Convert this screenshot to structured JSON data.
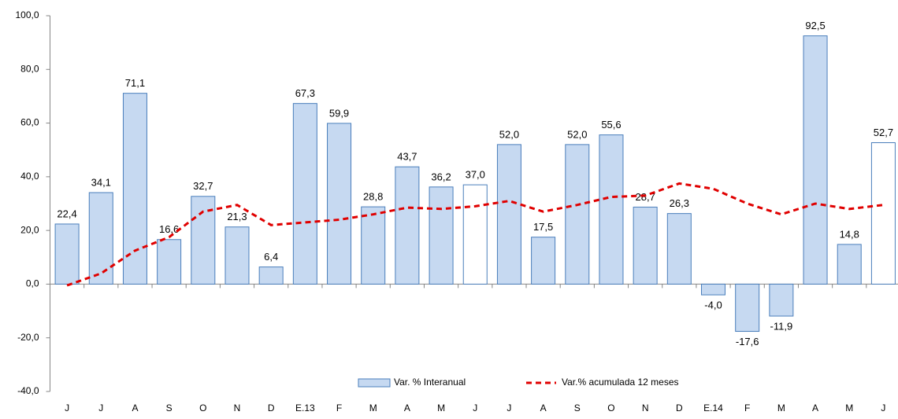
{
  "chart_data": {
    "type": "bar",
    "categories": [
      "J",
      "J",
      "A",
      "S",
      "O",
      "N",
      "D",
      "E.13",
      "F",
      "M",
      "A",
      "M",
      "J",
      "J",
      "A",
      "S",
      "O",
      "N",
      "D",
      "E.14",
      "F",
      "M",
      "A",
      "M",
      "J"
    ],
    "series": [
      {
        "name": "Var. % Interanual",
        "type": "bar",
        "color": "#c6d9f1",
        "edge_color": "#4a7ebb",
        "colors": [
          "#c6d9f1",
          "#c6d9f1",
          "#c6d9f1",
          "#c6d9f1",
          "#c6d9f1",
          "#c6d9f1",
          "#c6d9f1",
          "#c6d9f1",
          "#c6d9f1",
          "#c6d9f1",
          "#c6d9f1",
          "#c6d9f1",
          "#ffffff",
          "#c6d9f1",
          "#c6d9f1",
          "#c6d9f1",
          "#c6d9f1",
          "#c6d9f1",
          "#c6d9f1",
          "#c6d9f1",
          "#c6d9f1",
          "#c6d9f1",
          "#c6d9f1",
          "#c6d9f1",
          "#ffffff"
        ],
        "values": [
          22.4,
          34.1,
          71.1,
          16.6,
          32.7,
          21.3,
          6.4,
          67.3,
          59.9,
          28.8,
          43.7,
          36.2,
          37.0,
          52.0,
          17.5,
          52.0,
          55.6,
          28.7,
          26.3,
          -4.0,
          -17.6,
          -11.9,
          92.5,
          14.8,
          52.7
        ],
        "value_labels": [
          "22,4",
          "34,1",
          "71,1",
          "16,6",
          "32,7",
          "21,3",
          "6,4",
          "67,3",
          "59,9",
          "28,8",
          "43,7",
          "36,2",
          "37,0",
          "52,0",
          "17,5",
          "52,0",
          "55,6",
          "28,7",
          "26,3",
          "-4,0",
          "-17,6",
          "-11,9",
          "92,5",
          "14,8",
          "52,7"
        ]
      },
      {
        "name": "Var.% acumulada 12 meses",
        "type": "line",
        "color": "#e00000",
        "values": [
          -0.5,
          4,
          12.5,
          17.5,
          27,
          29.5,
          22,
          23,
          24,
          26,
          28.5,
          28,
          29,
          31,
          27,
          29.5,
          32.5,
          33,
          37.5,
          35.5,
          30,
          26,
          30,
          28,
          29.5
        ]
      }
    ],
    "ylim": [
      -40,
      100
    ],
    "yticks": [
      {
        "value": -40,
        "label": "-40,0"
      },
      {
        "value": -20,
        "label": "-20,0"
      },
      {
        "value": 0,
        "label": "0,0"
      },
      {
        "value": 20,
        "label": "20,0"
      },
      {
        "value": 40,
        "label": "40,0"
      },
      {
        "value": 60,
        "label": "60,0"
      },
      {
        "value": 80,
        "label": "80,0"
      },
      {
        "value": 100,
        "label": "100,0"
      }
    ],
    "grid": false,
    "legend": "bottom"
  }
}
